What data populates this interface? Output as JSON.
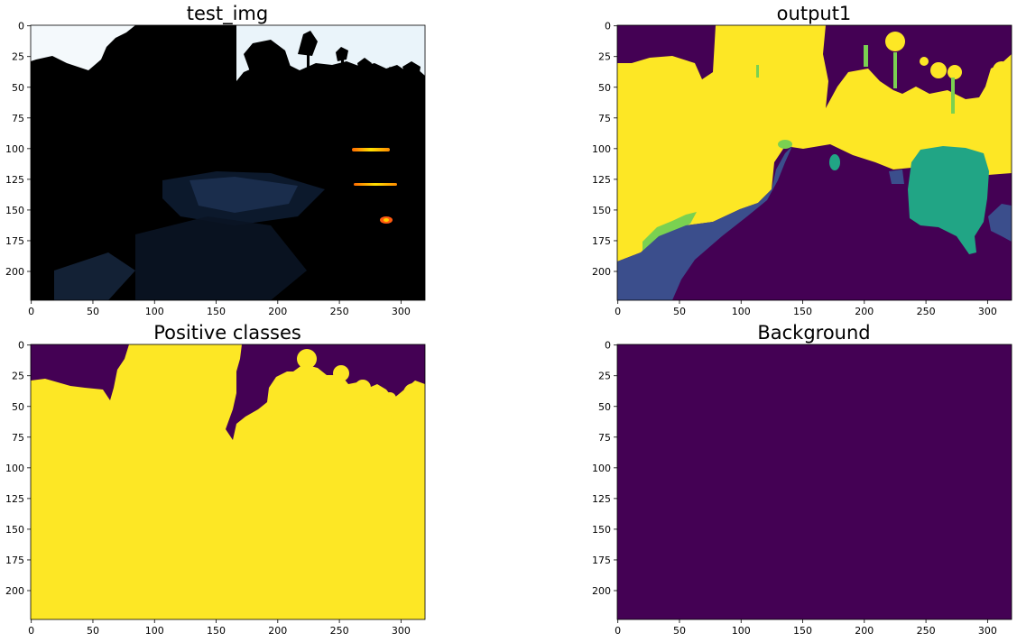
{
  "chart_data": [
    {
      "type": "heatmap",
      "title": "test_img",
      "image_width": 320,
      "image_height": 224,
      "xticks": [
        0,
        50,
        100,
        150,
        200,
        250,
        300
      ],
      "yticks": [
        0,
        25,
        50,
        75,
        100,
        125,
        150,
        175,
        200
      ],
      "content": "dark night photo of road with tree silhouettes against bright sky and light streaks"
    },
    {
      "type": "heatmap",
      "title": "output1",
      "image_width": 320,
      "image_height": 224,
      "xticks": [
        0,
        50,
        100,
        150,
        200,
        250,
        300
      ],
      "yticks": [
        0,
        25,
        50,
        75,
        100,
        125,
        150,
        175,
        200
      ],
      "colormap": "viridis",
      "class_colors": [
        "#440154",
        "#3b4e8c",
        "#21a585",
        "#7ad151",
        "#fde725"
      ]
    },
    {
      "type": "heatmap",
      "title": "Positive classes",
      "image_width": 320,
      "image_height": 224,
      "xticks": [
        0,
        50,
        100,
        150,
        200,
        250,
        300
      ],
      "yticks": [
        0,
        25,
        50,
        75,
        100,
        125,
        150,
        175,
        200
      ],
      "colormap": "viridis",
      "class_colors": [
        "#440154",
        "#fde725"
      ]
    },
    {
      "type": "heatmap",
      "title": "Background",
      "image_width": 320,
      "image_height": 224,
      "xticks": [
        0,
        50,
        100,
        150,
        200,
        250,
        300
      ],
      "yticks": [
        0,
        25,
        50,
        75,
        100,
        125,
        150,
        175,
        200
      ],
      "colormap": "viridis",
      "class_colors": [
        "#440154"
      ]
    }
  ]
}
